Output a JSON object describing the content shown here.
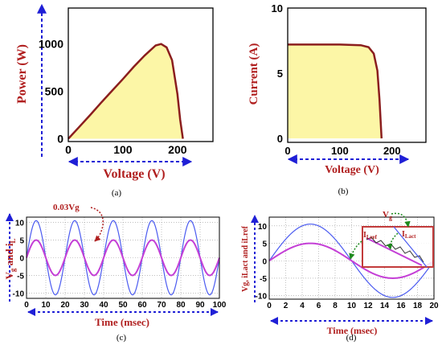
{
  "colors": {
    "fill": "#fcf6a6",
    "curve": "#8b1e1e",
    "axis_arrow": "#1f1fd6",
    "label_red": "#b01e1e",
    "sine_blue": "#4b5bf0",
    "sine_magenta": "#c43fd6",
    "box": "#c23b3b",
    "annot_green": "#1e8a1e"
  },
  "panel_labels": {
    "a": "(a)",
    "b": "(b)",
    "c": "(c)",
    "d": "(d)"
  },
  "chart_data": [
    {
      "id": "a",
      "type": "area",
      "title": "",
      "xlabel": "Voltage (V)",
      "ylabel": "Power (W)",
      "xlim": [
        0,
        265
      ],
      "ylim": [
        -30,
        1380
      ],
      "xticks": [
        0,
        100,
        200
      ],
      "yticks": [
        0,
        500,
        1000
      ],
      "x": [
        0,
        20,
        40,
        60,
        80,
        100,
        120,
        140,
        160,
        170,
        180,
        190,
        200,
        205,
        210
      ],
      "y": [
        0,
        125,
        250,
        380,
        505,
        630,
        760,
        880,
        985,
        1000,
        965,
        830,
        470,
        200,
        0
      ]
    },
    {
      "id": "b",
      "type": "area",
      "title": "",
      "xlabel": "Voltage (V)",
      "ylabel": "Current (A)",
      "xlim": [
        0,
        265
      ],
      "ylim": [
        -0.3,
        10
      ],
      "xticks": [
        0,
        100,
        200
      ],
      "yticks": [
        0,
        5,
        10
      ],
      "x": [
        0,
        50,
        100,
        140,
        155,
        165,
        172,
        176,
        178,
        180
      ],
      "y": [
        7.2,
        7.2,
        7.2,
        7.15,
        7.0,
        6.5,
        5.2,
        3.0,
        1.5,
        0
      ]
    },
    {
      "id": "c",
      "type": "line",
      "title": "",
      "xlabel": "Time (msec)",
      "ylabel": "Vg and iL",
      "xlim": [
        0,
        100
      ],
      "ylim": [
        -11.5,
        11.5
      ],
      "xticks": [
        0,
        10,
        20,
        30,
        40,
        50,
        60,
        70,
        80,
        90,
        100
      ],
      "yticks": [
        -10,
        -5,
        0,
        5,
        10
      ],
      "annotation": "0.03Vg",
      "series": [
        {
          "name": "Vg",
          "amplitude": 10.5,
          "frequency_hz": 50,
          "color": "#4b5bf0"
        },
        {
          "name": "iL",
          "amplitude": 5,
          "frequency_hz": 50,
          "color": "#c43fd6"
        }
      ]
    },
    {
      "id": "d",
      "type": "line",
      "title": "",
      "xlabel": "Time (msec)",
      "ylabel": "Vg, iLact and iLref",
      "xlim": [
        0,
        20
      ],
      "ylim": [
        -11,
        12.5
      ],
      "xticks": [
        0,
        2,
        4,
        6,
        8,
        10,
        12,
        14,
        16,
        18,
        20
      ],
      "yticks": [
        -10,
        -5,
        0,
        5,
        10
      ],
      "annotations": [
        "Vg",
        "ILref",
        "ILact"
      ],
      "series": [
        {
          "name": "Vg",
          "amplitude": 10.5,
          "frequency_hz": 50,
          "color": "#4b5bf0"
        },
        {
          "name": "iL",
          "amplitude": 5,
          "frequency_hz": 50,
          "color": "#c43fd6"
        }
      ]
    }
  ],
  "text": {
    "a_ylabel": "Power (W)",
    "a_xlabel": "Voltage (V)",
    "b_ylabel": "Current (A)",
    "b_xlabel": "Voltage (V)",
    "c_ylabel_main": "V",
    "c_ylabel_sub1": "g",
    "c_ylabel_mid": " and i",
    "c_ylabel_sub2": "L",
    "c_xlabel": "Time (msec)",
    "c_annot": "0.03Vg",
    "d_ylabel": "Vg, iLact and iLref",
    "d_xlabel": "Time (msec)",
    "d_vg": "V",
    "d_vg_sub": "g",
    "d_ilref": "I",
    "d_ilref_sub": "Lref",
    "d_ilact": "I",
    "d_ilact_sub": "Lact"
  }
}
